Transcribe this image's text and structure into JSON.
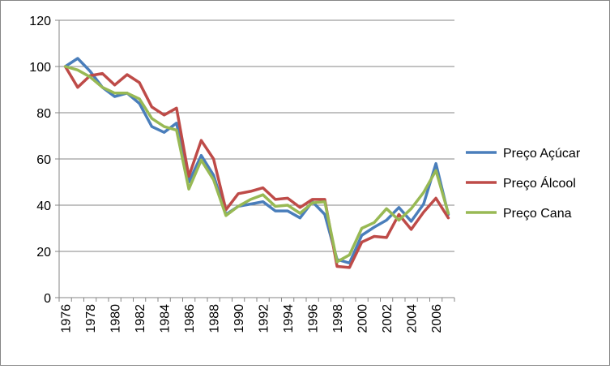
{
  "chart_data": {
    "type": "line",
    "title": "",
    "xlabel": "",
    "ylabel": "",
    "x": [
      1976,
      1977,
      1978,
      1979,
      1980,
      1981,
      1982,
      1983,
      1984,
      1985,
      1986,
      1987,
      1988,
      1989,
      1990,
      1991,
      1992,
      1993,
      1994,
      1995,
      1996,
      1997,
      1998,
      1999,
      2000,
      2001,
      2002,
      2003,
      2004,
      2005,
      2006,
      2007
    ],
    "x_tick_labels": [
      "1976",
      "1978",
      "1980",
      "1982",
      "1984",
      "1986",
      "1988",
      "1990",
      "1992",
      "1994",
      "1996",
      "1998",
      "2000",
      "2002",
      "2004",
      "2006"
    ],
    "ylim": [
      0,
      120
    ],
    "y_ticks": [
      0,
      20,
      40,
      60,
      80,
      100,
      120
    ],
    "grid": "horizontal",
    "legend_position": "right",
    "series": [
      {
        "name": "Preço Açúcar",
        "color": "#4a7ebb",
        "values": [
          100,
          103.5,
          98,
          91,
          87,
          88.5,
          84,
          74,
          71.5,
          75.5,
          50,
          61.5,
          53,
          36,
          39.5,
          40.5,
          41.5,
          37.5,
          37.5,
          34.5,
          41.5,
          36,
          16.5,
          15,
          27,
          30.5,
          33.5,
          39,
          33,
          40.5,
          58,
          36
        ]
      },
      {
        "name": "Preço Álcool",
        "color": "#be4b48",
        "values": [
          100,
          91,
          96,
          97,
          92,
          96.5,
          93,
          82.5,
          79,
          82,
          52.5,
          68,
          60,
          38,
          45,
          46,
          47.5,
          42.5,
          43,
          39,
          42.5,
          42.5,
          13.5,
          13,
          24,
          26.5,
          26,
          36,
          29.5,
          37,
          43,
          34.5
        ]
      },
      {
        "name": "Preço Cana",
        "color": "#98b954",
        "values": [
          100,
          98.5,
          95.5,
          91,
          88.5,
          88.5,
          86,
          77.5,
          74,
          72.5,
          47,
          59.5,
          51,
          35.5,
          39.5,
          42.5,
          44.5,
          39.5,
          40,
          36.5,
          41,
          41.5,
          15.5,
          18.5,
          30,
          32.5,
          38.5,
          33.5,
          38.5,
          45.5,
          55,
          36.5
        ]
      }
    ]
  }
}
